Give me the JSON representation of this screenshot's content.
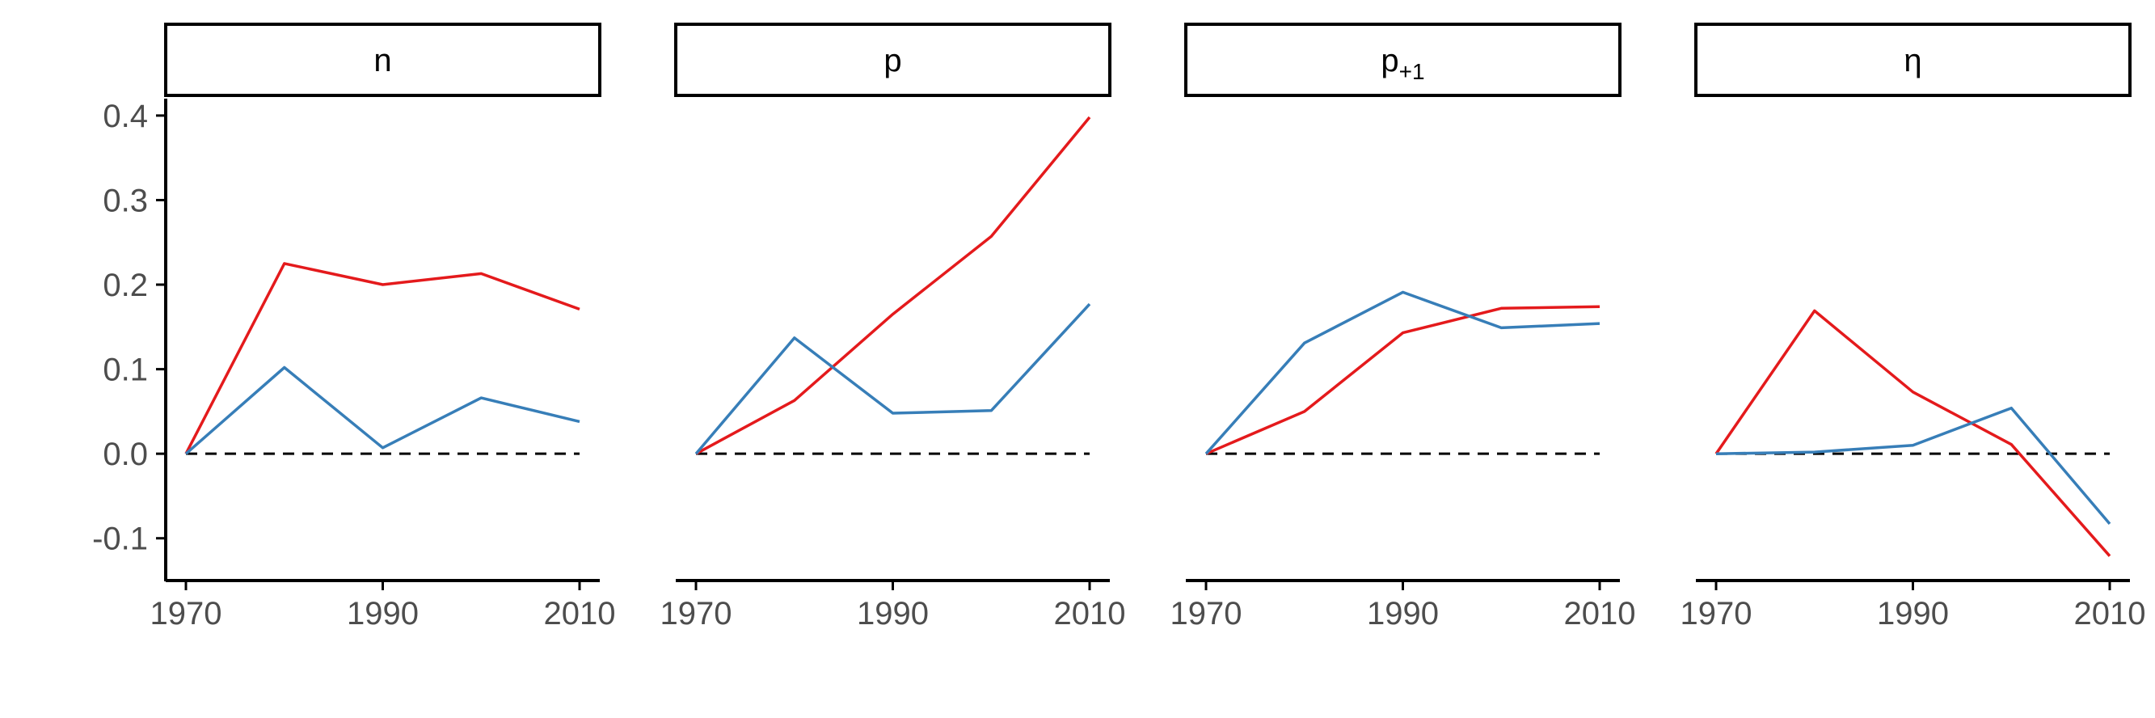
{
  "chart_data": {
    "type": "line",
    "layout": "facets",
    "x": [
      1970,
      1980,
      1990,
      2000,
      2010
    ],
    "xlim": [
      1970,
      2010
    ],
    "x_ticks": [
      1970,
      1990,
      2010
    ],
    "ylim": [
      -0.15,
      0.42
    ],
    "y_ticks": [
      -0.1,
      0.0,
      0.1,
      0.2,
      0.3,
      0.4
    ],
    "y_tick_labels": [
      "-0.1",
      "0.0",
      "0.1",
      "0.2",
      "0.3",
      "0.4"
    ],
    "reference_line": {
      "y": 0,
      "style": "dashed",
      "color": "#000000"
    },
    "grid": false,
    "legend": "none",
    "series_colors": [
      "#E41A1C",
      "#377EB8"
    ],
    "facets": [
      {
        "label": "n",
        "label_sub": "",
        "series": [
          {
            "color": "#E41A1C",
            "values": [
              0.0,
              0.225,
              0.2,
              0.213,
              0.171
            ]
          },
          {
            "color": "#377EB8",
            "values": [
              0.0,
              0.102,
              0.007,
              0.066,
              0.038
            ]
          }
        ]
      },
      {
        "label": "p",
        "label_sub": "",
        "series": [
          {
            "color": "#E41A1C",
            "values": [
              0.0,
              0.063,
              0.165,
              0.257,
              0.398
            ]
          },
          {
            "color": "#377EB8",
            "values": [
              0.0,
              0.137,
              0.048,
              0.051,
              0.177
            ]
          }
        ]
      },
      {
        "label": "p",
        "label_sub": "+1",
        "series": [
          {
            "color": "#E41A1C",
            "values": [
              0.0,
              0.05,
              0.143,
              0.172,
              0.174
            ]
          },
          {
            "color": "#377EB8",
            "values": [
              0.0,
              0.131,
              0.191,
              0.149,
              0.154
            ]
          }
        ]
      },
      {
        "label": "η",
        "label_sub": "",
        "series": [
          {
            "color": "#E41A1C",
            "values": [
              0.0,
              0.169,
              0.073,
              0.011,
              -0.121
            ]
          },
          {
            "color": "#377EB8",
            "values": [
              0.0,
              0.002,
              0.01,
              0.054,
              -0.083
            ]
          }
        ]
      }
    ]
  }
}
